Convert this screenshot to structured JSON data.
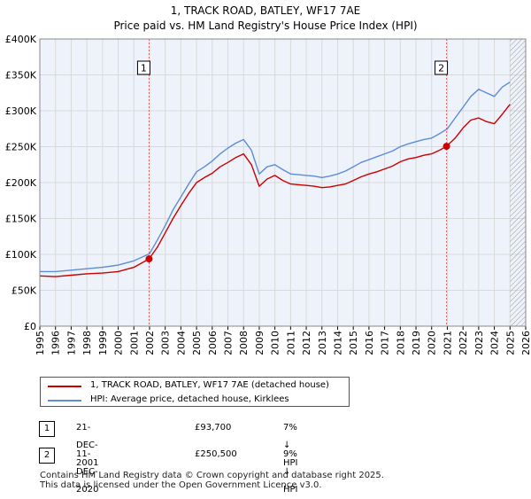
{
  "title_line1": "1, TRACK ROAD, BATLEY, WF17 7AE",
  "title_line2": "Price paid vs. HM Land Registry's House Price Index (HPI)",
  "colors": {
    "property": "#cc0000",
    "hpi": "#5b8ed6",
    "grid": "#d9d9d9",
    "plot_bg": "#eef2fa",
    "vline": "#e06060"
  },
  "chart_data": {
    "type": "line",
    "title": "1, TRACK ROAD, BATLEY, WF17 7AE",
    "subtitle": "Price paid vs. HM Land Registry's House Price Index (HPI)",
    "xlabel": "",
    "ylabel": "",
    "xlim": [
      1995,
      2026
    ],
    "ylim": [
      0,
      400000
    ],
    "x_ticks": [
      "1995",
      "1996",
      "1997",
      "1998",
      "1999",
      "2000",
      "2001",
      "2002",
      "2003",
      "2004",
      "2005",
      "2006",
      "2007",
      "2008",
      "2009",
      "2010",
      "2011",
      "2012",
      "2013",
      "2014",
      "2015",
      "2016",
      "2017",
      "2018",
      "2019",
      "2020",
      "2021",
      "2022",
      "2023",
      "2024",
      "2025",
      "2026"
    ],
    "y_ticks": [
      {
        "value": 0,
        "label": "£0"
      },
      {
        "value": 50000,
        "label": "£50K"
      },
      {
        "value": 100000,
        "label": "£100K"
      },
      {
        "value": 150000,
        "label": "£150K"
      },
      {
        "value": 200000,
        "label": "£200K"
      },
      {
        "value": 250000,
        "label": "£250K"
      },
      {
        "value": 300000,
        "label": "£300K"
      },
      {
        "value": 350000,
        "label": "£350K"
      },
      {
        "value": 400000,
        "label": "£400K"
      }
    ],
    "grid": true,
    "hatched_region": [
      2025.0,
      2026
    ],
    "series": [
      {
        "name": "1, TRACK ROAD, BATLEY, WF17 7AE (detached house)",
        "color": "#cc0000",
        "x": [
          1995,
          1996,
          1997,
          1998,
          1999,
          2000,
          2001,
          2001.97,
          2002.5,
          2003,
          2003.5,
          2004,
          2004.5,
          2005,
          2005.5,
          2006,
          2006.5,
          2007,
          2007.5,
          2008,
          2008.5,
          2009,
          2009.5,
          2010,
          2010.5,
          2011,
          2011.5,
          2012,
          2012.5,
          2013,
          2013.5,
          2014,
          2014.5,
          2015,
          2015.5,
          2016,
          2016.5,
          2017,
          2017.5,
          2018,
          2018.5,
          2019,
          2019.5,
          2020,
          2020.5,
          2020.95,
          2021.5,
          2022,
          2022.5,
          2023,
          2023.5,
          2024,
          2024.5,
          2025
        ],
        "y": [
          70000,
          69000,
          71000,
          73000,
          74000,
          76000,
          82000,
          93700,
          110000,
          130000,
          150000,
          168000,
          185000,
          200000,
          207000,
          213000,
          222000,
          228000,
          235000,
          240000,
          225000,
          195000,
          205000,
          210000,
          203000,
          198000,
          197000,
          196000,
          195000,
          193000,
          194000,
          196000,
          198000,
          203000,
          208000,
          212000,
          215000,
          219000,
          223000,
          229000,
          233000,
          235000,
          238000,
          240000,
          245000,
          250500,
          262000,
          276000,
          287000,
          290000,
          285000,
          282000,
          295000,
          309000
        ]
      },
      {
        "name": "HPI: Average price, detached house, Kirklees",
        "color": "#5b8ed6",
        "x": [
          1995,
          1996,
          1997,
          1998,
          1999,
          2000,
          2001,
          2002,
          2002.5,
          2003,
          2003.5,
          2004,
          2004.5,
          2005,
          2005.5,
          2006,
          2006.5,
          2007,
          2007.5,
          2008,
          2008.5,
          2009,
          2009.5,
          2010,
          2010.5,
          2011,
          2011.5,
          2012,
          2012.5,
          2013,
          2013.5,
          2014,
          2014.5,
          2015,
          2015.5,
          2016,
          2016.5,
          2017,
          2017.5,
          2018,
          2018.5,
          2019,
          2019.5,
          2020,
          2020.5,
          2021,
          2021.5,
          2022,
          2022.5,
          2023,
          2023.5,
          2024,
          2024.5,
          2025
        ],
        "y": [
          76000,
          76000,
          78000,
          80000,
          82000,
          85000,
          91000,
          101000,
          120000,
          140000,
          162000,
          180000,
          198000,
          215000,
          222000,
          230000,
          240000,
          248000,
          255000,
          260000,
          245000,
          212000,
          222000,
          225000,
          218000,
          212000,
          211000,
          210000,
          209000,
          207000,
          209000,
          212000,
          216000,
          222000,
          228000,
          232000,
          236000,
          240000,
          244000,
          250000,
          254000,
          257000,
          260000,
          262000,
          268000,
          275000,
          290000,
          305000,
          320000,
          330000,
          325000,
          320000,
          333000,
          340000
        ]
      }
    ],
    "annotations": [
      {
        "label": "1",
        "x": 2001.97,
        "y": 93700
      },
      {
        "label": "2",
        "x": 2020.95,
        "y": 250500
      }
    ]
  },
  "legend": {
    "property_label": "1, TRACK ROAD, BATLEY, WF17 7AE (detached house)",
    "hpi_label": "HPI: Average price, detached house, Kirklees"
  },
  "transactions": [
    {
      "num": "1",
      "date": "21-DEC-2001",
      "price": "£93,700",
      "hpi": "7% ↓ HPI"
    },
    {
      "num": "2",
      "date": "11-DEC-2020",
      "price": "£250,500",
      "hpi": "9% ↓ HPI"
    }
  ],
  "footer_line1": "Contains HM Land Registry data © Crown copyright and database right 2025.",
  "footer_line2": "This data is licensed under the Open Government Licence v3.0."
}
